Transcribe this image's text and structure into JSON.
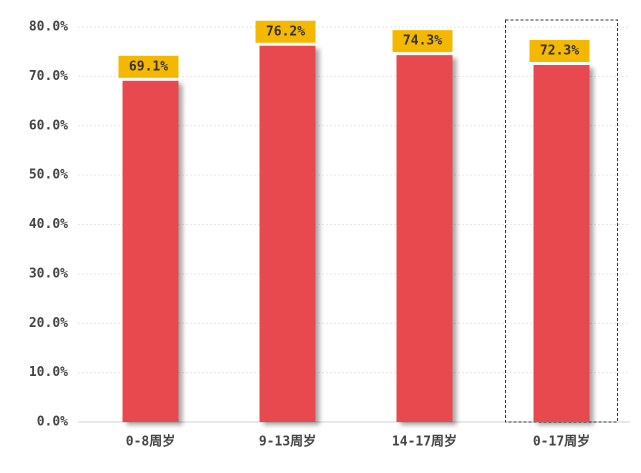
{
  "chart_data": {
    "type": "bar",
    "categories": [
      "0-8周岁",
      "9-13周岁",
      "14-17周岁",
      "0-17周岁"
    ],
    "values": [
      69.1,
      76.2,
      74.3,
      72.3
    ],
    "value_labels": [
      "69.1%",
      "76.2%",
      "74.3%",
      "72.3%"
    ],
    "color": "#e84a50",
    "ylim": [
      0,
      80
    ],
    "yticks": [
      {
        "value": 0,
        "label": "0.0%"
      },
      {
        "value": 10,
        "label": "10.0%"
      },
      {
        "value": 20,
        "label": "20.0%"
      },
      {
        "value": 30,
        "label": "30.0%"
      },
      {
        "value": 40,
        "label": "40.0%"
      },
      {
        "value": 50,
        "label": "50.0%"
      },
      {
        "value": 60,
        "label": "60.0%"
      },
      {
        "value": 70,
        "label": "70.0%"
      },
      {
        "value": 80,
        "label": "80.0%"
      }
    ],
    "grid": true
  }
}
